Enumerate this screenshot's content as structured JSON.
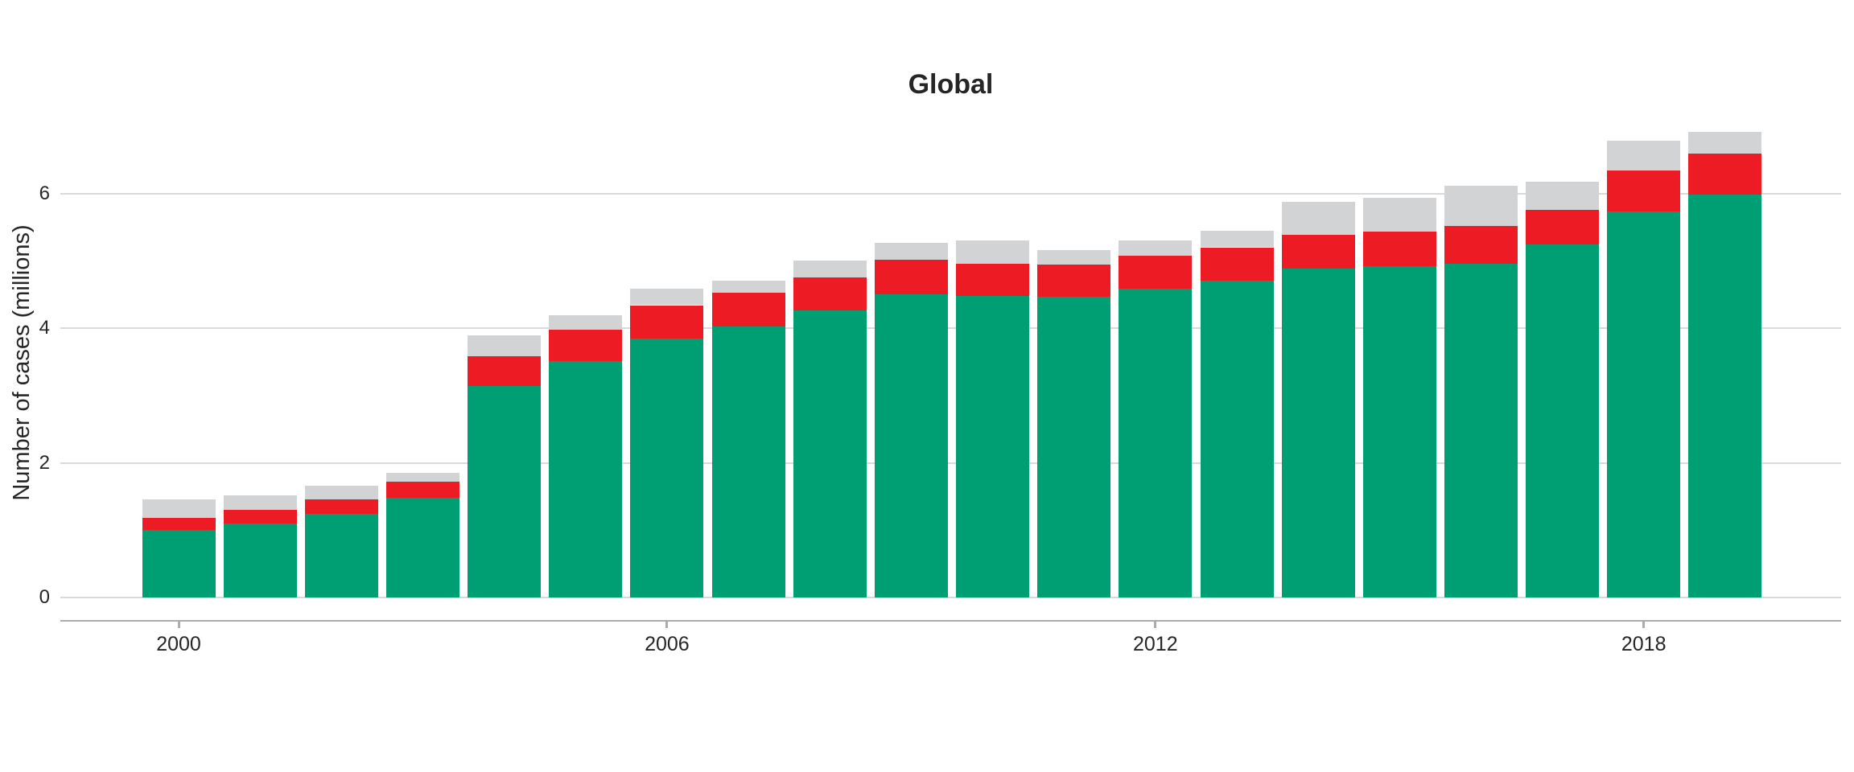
{
  "page": {
    "background": "#ffffff"
  },
  "chart_data": {
    "type": "bar",
    "stacked": true,
    "title": "Global",
    "xlabel": "",
    "ylabel": "Number of cases (millions)",
    "categories": [
      "2000",
      "2001",
      "2002",
      "2003",
      "2004",
      "2005",
      "2006",
      "2007",
      "2008",
      "2009",
      "2010",
      "2011",
      "2012",
      "2013",
      "2014",
      "2015",
      "2016",
      "2017",
      "2018",
      "2019"
    ],
    "series": [
      {
        "name": "green",
        "color": "#009E73",
        "values": [
          1.0,
          1.1,
          1.24,
          1.48,
          3.14,
          3.51,
          3.84,
          4.03,
          4.26,
          4.5,
          4.48,
          4.46,
          4.59,
          4.7,
          4.88,
          4.92,
          4.96,
          5.24,
          5.73,
          5.98
        ]
      },
      {
        "name": "red",
        "color": "#ED1C24",
        "values": [
          0.18,
          0.2,
          0.22,
          0.24,
          0.44,
          0.46,
          0.5,
          0.5,
          0.49,
          0.51,
          0.47,
          0.48,
          0.49,
          0.5,
          0.5,
          0.51,
          0.56,
          0.52,
          0.61,
          0.61
        ]
      },
      {
        "name": "grey",
        "color": "#D1D3D4",
        "values": [
          0.28,
          0.22,
          0.2,
          0.13,
          0.31,
          0.22,
          0.25,
          0.18,
          0.25,
          0.26,
          0.35,
          0.22,
          0.22,
          0.24,
          0.5,
          0.5,
          0.59,
          0.41,
          0.44,
          0.33
        ]
      }
    ],
    "x_tick_labels": [
      "2000",
      "2006",
      "2012",
      "2018"
    ],
    "x_tick_categories": [
      "2000",
      "2006",
      "2012",
      "2018"
    ],
    "y_tick_labels": [
      "0",
      "2",
      "4",
      "6"
    ],
    "y_tick_values": [
      0,
      2,
      4,
      6
    ],
    "ylim": [
      0,
      7.2
    ],
    "grid": "horizontal-only",
    "legend": "none"
  },
  "style": {
    "gridline_color": "#D9D9D9",
    "axis_line_color": "#ACACAC",
    "tick_color": "#ACACAC",
    "text_color": "#262626"
  }
}
